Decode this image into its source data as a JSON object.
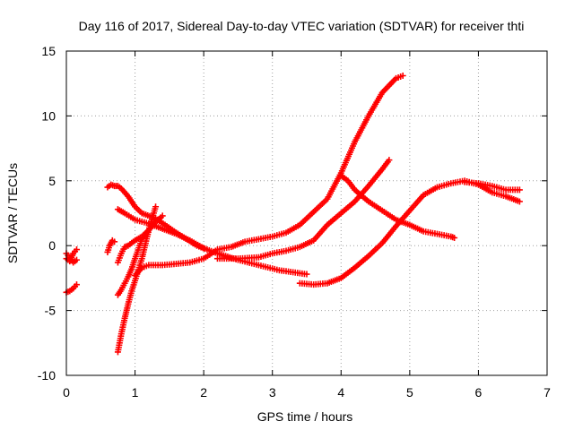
{
  "chart_data": {
    "type": "scatter",
    "title": "Day 116 of 2017, Sidereal Day-to-day VTEC variation (SDTVAR) for receiver thti",
    "xlabel": "GPS time / hours",
    "ylabel": "SDTVAR / TECUs",
    "xlim": [
      0,
      7
    ],
    "ylim": [
      -10,
      15
    ],
    "xticks": [
      0,
      1,
      2,
      3,
      4,
      5,
      6,
      7
    ],
    "yticks": [
      -10,
      -5,
      0,
      5,
      10,
      15
    ],
    "grid": true,
    "marker": "plus",
    "color": "#ff0000",
    "series": [
      {
        "x": [
          0.0,
          0.05,
          0.1,
          0.15
        ],
        "y": [
          -1.0,
          -1.2,
          -0.6,
          -0.3
        ]
      },
      {
        "x": [
          0.0,
          0.05,
          0.1,
          0.15
        ],
        "y": [
          -3.6,
          -3.5,
          -3.3,
          -3.0
        ]
      },
      {
        "x": [
          0.0,
          0.05,
          0.1,
          0.15
        ],
        "y": [
          -0.6,
          -0.9,
          -1.3,
          -1.1
        ]
      },
      {
        "x": [
          0.6,
          0.63,
          0.67,
          0.7
        ],
        "y": [
          -0.5,
          0.0,
          0.4,
          0.3
        ]
      },
      {
        "x": [
          0.6,
          0.65,
          0.7,
          0.75,
          0.8,
          0.9,
          1.0,
          1.1,
          1.3,
          1.6,
          1.9,
          2.2,
          2.5,
          2.8,
          3.1,
          3.5
        ],
        "y": [
          4.5,
          4.7,
          4.6,
          4.6,
          4.4,
          3.8,
          3.0,
          2.5,
          2.1,
          1.0,
          0.0,
          -0.6,
          -1.1,
          -1.5,
          -1.9,
          -2.2
        ]
      },
      {
        "x": [
          0.75,
          0.85,
          1.0,
          1.2,
          1.4,
          1.6,
          1.8,
          2.0
        ],
        "y": [
          2.8,
          2.5,
          2.0,
          1.7,
          1.3,
          0.9,
          0.4,
          -0.2
        ]
      },
      {
        "x": [
          0.75,
          0.8,
          0.85,
          0.9,
          1.0,
          1.1,
          1.2,
          1.3,
          1.4
        ],
        "y": [
          -1.3,
          -0.6,
          -0.1,
          0.0,
          0.4,
          0.7,
          1.2,
          1.8,
          2.3
        ]
      },
      {
        "x": [
          0.75,
          0.8,
          0.85,
          0.9,
          0.95,
          1.0,
          1.1,
          1.2
        ],
        "y": [
          -3.8,
          -3.4,
          -2.9,
          -2.4,
          -1.8,
          -1.0,
          0.5,
          1.2
        ]
      },
      {
        "x": [
          0.75,
          0.8,
          0.85,
          0.9,
          0.95,
          1.0,
          1.1,
          1.2,
          1.3
        ],
        "y": [
          -8.2,
          -6.8,
          -5.6,
          -4.5,
          -3.5,
          -2.7,
          -1.0,
          1.2,
          3.0
        ]
      },
      {
        "x": [
          1.0,
          1.1,
          1.2,
          1.4,
          1.6,
          1.8,
          2.0,
          2.2,
          2.4,
          2.6,
          2.8,
          3.0,
          3.2,
          3.4,
          3.6,
          3.8,
          4.0,
          4.2,
          4.4,
          4.6,
          4.8,
          4.9
        ],
        "y": [
          -2.3,
          -1.7,
          -1.5,
          -1.5,
          -1.4,
          -1.3,
          -1.0,
          -0.3,
          -0.1,
          0.3,
          0.5,
          0.7,
          1.0,
          1.6,
          2.6,
          3.6,
          5.6,
          8.0,
          10.0,
          11.8,
          12.9,
          13.1
        ]
      },
      {
        "x": [
          2.2,
          2.5,
          2.8,
          3.0,
          3.2,
          3.4,
          3.6,
          3.8,
          4.0,
          4.2,
          4.4,
          4.6,
          4.7
        ],
        "y": [
          -1.0,
          -1.0,
          -0.9,
          -0.6,
          -0.4,
          -0.1,
          0.4,
          1.6,
          2.5,
          3.4,
          4.6,
          5.9,
          6.6
        ]
      },
      {
        "x": [
          3.4,
          3.6,
          3.8,
          4.0,
          4.2,
          4.4,
          4.6,
          4.8,
          5.0,
          5.2,
          5.4,
          5.6,
          5.8,
          6.0,
          6.2,
          6.4,
          6.6
        ],
        "y": [
          -2.9,
          -3.0,
          -2.9,
          -2.5,
          -1.7,
          -0.8,
          0.2,
          1.5,
          2.7,
          3.9,
          4.5,
          4.8,
          5.0,
          4.7,
          4.1,
          3.8,
          3.4
        ]
      },
      {
        "x": [
          4.0,
          4.1,
          4.2,
          4.4,
          4.6,
          4.8,
          5.0,
          5.2,
          5.4,
          5.6,
          5.65
        ],
        "y": [
          5.4,
          5.0,
          4.3,
          3.4,
          2.7,
          2.0,
          1.6,
          1.1,
          0.9,
          0.7,
          0.6
        ]
      },
      {
        "x": [
          5.8,
          6.0,
          6.2,
          6.4,
          6.6
        ],
        "y": [
          4.9,
          4.8,
          4.6,
          4.3,
          4.3
        ]
      }
    ]
  }
}
